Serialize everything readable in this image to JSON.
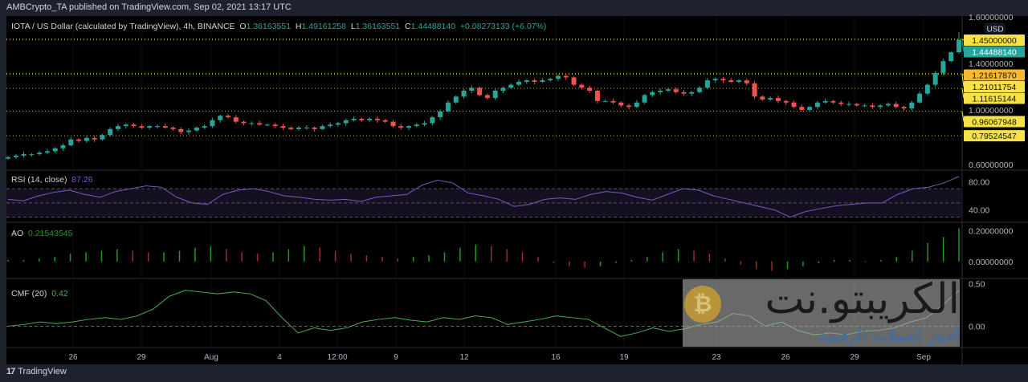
{
  "header": {
    "published": "AMBCrypto_TA published on TradingView.com, Sep 02, 2021 13:17 UTC"
  },
  "symbol": {
    "title": "IOTA / US Dollar (calculated by TradingView), 4h, BINANCE",
    "open_label": "O",
    "open": "1.36163551",
    "high_label": "H",
    "high": "1.49161258",
    "low_label": "L",
    "low": "1.36163551",
    "close_label": "C",
    "close": "1.44488140",
    "change": "+0.08273133 (+6.07%)"
  },
  "colors": {
    "up": "#26a69a",
    "down": "#ef5350",
    "level": "#f7e14a",
    "level_highlight": "#f5b82e",
    "rsi": "#7e57c2",
    "ao_up": "#1b9e1b",
    "ao_down": "#a52a2a",
    "cmf": "#4caf50",
    "bg": "#000000"
  },
  "chart_data": [
    {
      "type": "candlestick",
      "title": "IOTA / US Dollar (calculated by TradingView), 4h, BINANCE",
      "currency": "USD",
      "ylim": [
        0.6,
        1.6
      ],
      "y_ticks": [
        "1.60000000",
        "1.40000000",
        "1.00000000",
        "0.60000000"
      ],
      "x_ticks": [
        "26",
        "29",
        "Aug",
        "4",
        "12:00",
        "9",
        "12",
        "16",
        "19",
        "23",
        "26",
        "29",
        "Sep"
      ],
      "closes": [
        0.65,
        0.66,
        0.67,
        0.67,
        0.68,
        0.69,
        0.71,
        0.73,
        0.77,
        0.76,
        0.78,
        0.77,
        0.8,
        0.84,
        0.86,
        0.87,
        0.86,
        0.85,
        0.86,
        0.86,
        0.85,
        0.84,
        0.82,
        0.83,
        0.85,
        0.86,
        0.9,
        0.93,
        0.92,
        0.89,
        0.88,
        0.88,
        0.87,
        0.87,
        0.86,
        0.85,
        0.84,
        0.85,
        0.85,
        0.84,
        0.86,
        0.87,
        0.88,
        0.9,
        0.91,
        0.9,
        0.91,
        0.9,
        0.89,
        0.86,
        0.85,
        0.86,
        0.87,
        0.88,
        0.92,
        0.96,
        1.02,
        1.06,
        1.1,
        1.12,
        1.07,
        1.05,
        1.1,
        1.12,
        1.14,
        1.16,
        1.17,
        1.16,
        1.17,
        1.18,
        1.2,
        1.19,
        1.14,
        1.12,
        1.1,
        1.03,
        1.03,
        1.02,
        1.0,
        0.99,
        1.02,
        1.07,
        1.09,
        1.1,
        1.11,
        1.09,
        1.08,
        1.09,
        1.12,
        1.17,
        1.18,
        1.17,
        1.16,
        1.17,
        1.15,
        1.06,
        1.04,
        1.05,
        1.03,
        1.02,
        0.99,
        0.97,
        0.99,
        1.02,
        1.03,
        1.02,
        1.01,
        1.01,
        1.0,
        1.0,
        0.99,
        1.0,
        1.01,
        0.99,
        0.98,
        1.02,
        1.08,
        1.14,
        1.22,
        1.3,
        1.36,
        1.4448814
      ],
      "levels": [
        {
          "value": 1.45,
          "label": "1.45000000"
        },
        {
          "value": 1.2161787,
          "label": "1.21617870",
          "highlight": true
        },
        {
          "value": 1.21011754,
          "label": "1.21011754"
        },
        {
          "value": 1.11615144,
          "label": "1.11615144"
        },
        {
          "value": 0.96067948,
          "label": "0.96067948"
        },
        {
          "value": 0.79524547,
          "label": "0.79524547"
        }
      ],
      "last_price": {
        "value": 1.4448814,
        "label": "1.44488140"
      }
    },
    {
      "type": "line",
      "title": "RSI (14, close)",
      "current": "87.26",
      "ylim": [
        25,
        95
      ],
      "y_ticks": [
        "80.00",
        "40.00"
      ],
      "bands": [
        30,
        50,
        70
      ],
      "values": [
        55,
        53,
        60,
        65,
        68,
        62,
        58,
        66,
        70,
        74,
        72,
        58,
        50,
        48,
        62,
        68,
        70,
        66,
        60,
        58,
        55,
        54,
        55,
        52,
        58,
        60,
        62,
        75,
        82,
        78,
        64,
        60,
        55,
        45,
        48,
        55,
        57,
        55,
        62,
        66,
        64,
        58,
        54,
        62,
        70,
        68,
        60,
        55,
        50,
        45,
        40,
        30,
        38,
        42,
        46,
        48,
        50,
        50,
        62,
        70,
        72,
        78,
        87.26
      ]
    },
    {
      "type": "bar",
      "title": "AO",
      "current": "0.21543545",
      "ylim": [
        -0.1,
        0.25
      ],
      "y_ticks": [
        "0.20000000",
        "0.00000000"
      ],
      "values": [
        0.01,
        0.01,
        0.02,
        0.03,
        0.05,
        0.06,
        0.07,
        0.08,
        0.07,
        0.06,
        0.06,
        0.07,
        0.09,
        0.1,
        0.08,
        0.06,
        0.05,
        0.06,
        0.08,
        0.1,
        0.09,
        0.07,
        0.05,
        0.04,
        0.03,
        0.02,
        0.03,
        0.04,
        0.06,
        0.09,
        0.11,
        0.1,
        0.08,
        0.06,
        0.03,
        -0.01,
        -0.03,
        -0.04,
        -0.03,
        -0.01,
        0.01,
        0.03,
        0.06,
        0.08,
        0.07,
        0.05,
        0.02,
        -0.02,
        -0.05,
        -0.06,
        -0.05,
        -0.03,
        -0.01,
        0.01,
        0.01,
        0.0,
        0.01,
        0.03,
        0.07,
        0.12,
        0.16,
        0.21543545
      ]
    },
    {
      "type": "line",
      "title": "CMF (20)",
      "current": "0.42",
      "ylim": [
        -0.25,
        0.55
      ],
      "y_ticks": [
        "0.50",
        "0.00"
      ],
      "values": [
        0.0,
        0.02,
        0.05,
        0.03,
        0.05,
        0.08,
        0.1,
        0.08,
        0.12,
        0.2,
        0.35,
        0.42,
        0.4,
        0.38,
        0.4,
        0.38,
        0.3,
        0.1,
        -0.08,
        -0.02,
        -0.05,
        -0.02,
        0.05,
        0.08,
        0.1,
        0.07,
        0.05,
        0.1,
        0.08,
        0.12,
        0.1,
        0.02,
        0.05,
        0.08,
        0.12,
        0.1,
        0.08,
        -0.02,
        -0.12,
        -0.08,
        -0.02,
        -0.06,
        -0.03,
        0.02,
        0.05,
        0.15,
        0.12,
        0.0,
        0.05,
        -0.05,
        -0.1,
        -0.08,
        -0.1,
        -0.06,
        -0.05,
        -0.02,
        0.05,
        0.1,
        0.25,
        0.42
      ]
    }
  ],
  "footer": {
    "logo": "17",
    "brand": "TradingView"
  },
  "watermark": {
    "name": "الكريبتو.نت",
    "tagline": "أخبار العملات الرقمية",
    "coin": "₿"
  }
}
